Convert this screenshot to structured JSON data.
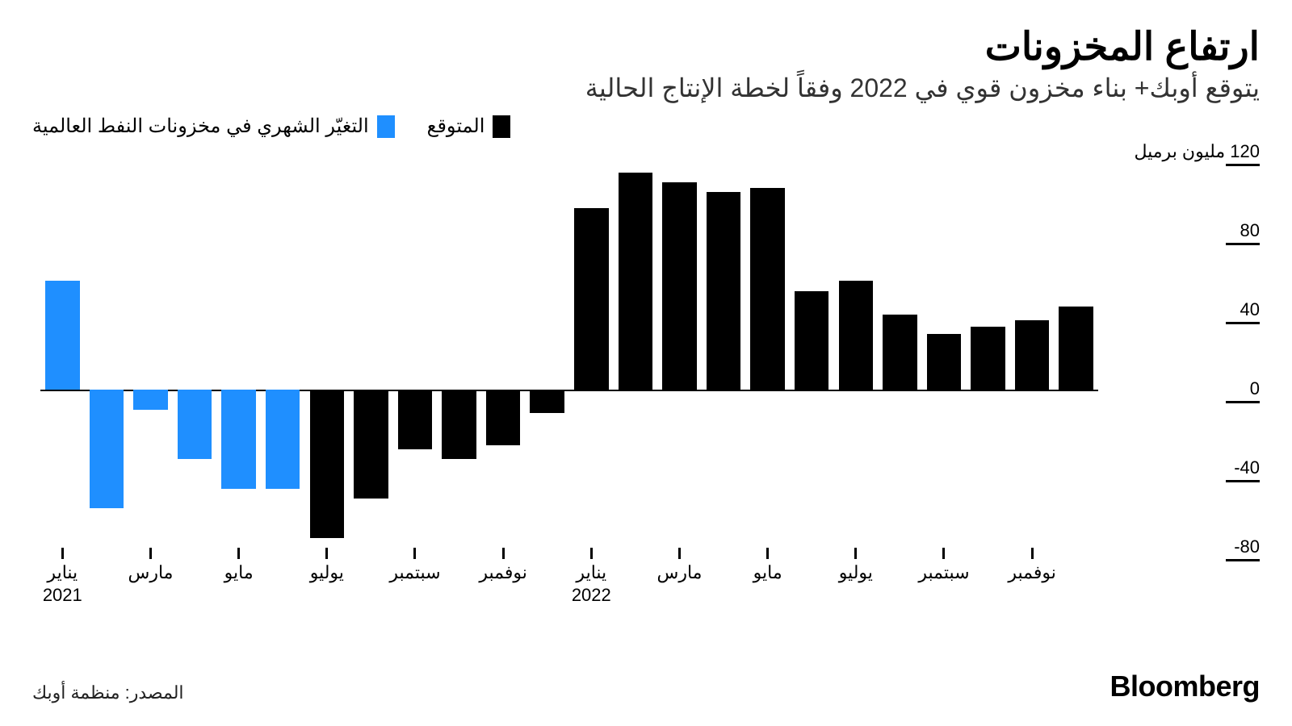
{
  "title": "ارتفاع المخزونات",
  "subtitle": "يتوقع أوبك+ بناء مخزون قوي في 2022 وفقاً لخطة الإنتاج الحالية",
  "legend": {
    "series1": {
      "label": "المتوقع",
      "color": "#000000"
    },
    "series2": {
      "label": "التغيّر الشهري في مخزونات النفط العالمية",
      "color": "#1f8fff"
    }
  },
  "source": "المصدر: منظمة أوبك",
  "brand": "Bloomberg",
  "chart": {
    "type": "bar",
    "y_unit_label": "مليون برميل",
    "ylim": [
      -80,
      120
    ],
    "yticks": [
      120,
      80,
      40,
      0,
      -40,
      -80
    ],
    "ytick_labels": [
      "120",
      "80",
      "40",
      "0",
      "40-",
      "80-"
    ],
    "background": "#ffffff",
    "axis_color": "#000000",
    "bar_gap_ratio": 0.22,
    "series": [
      {
        "value": 55,
        "color": "#1f8fff",
        "xlabel": "يناير",
        "xsub": "2021"
      },
      {
        "value": -60,
        "color": "#1f8fff"
      },
      {
        "value": -10,
        "color": "#1f8fff",
        "xlabel": "مارس"
      },
      {
        "value": -35,
        "color": "#1f8fff"
      },
      {
        "value": -50,
        "color": "#1f8fff",
        "xlabel": "مايو"
      },
      {
        "value": -50,
        "color": "#1f8fff"
      },
      {
        "value": -75,
        "color": "#000000",
        "xlabel": "يوليو"
      },
      {
        "value": -55,
        "color": "#000000"
      },
      {
        "value": -30,
        "color": "#000000",
        "xlabel": "سبتمبر"
      },
      {
        "value": -35,
        "color": "#000000"
      },
      {
        "value": -28,
        "color": "#000000",
        "xlabel": "نوفمبر"
      },
      {
        "value": -12,
        "color": "#000000"
      },
      {
        "value": 92,
        "color": "#000000",
        "xlabel": "يناير",
        "xsub": "2022"
      },
      {
        "value": 110,
        "color": "#000000"
      },
      {
        "value": 105,
        "color": "#000000",
        "xlabel": "مارس"
      },
      {
        "value": 100,
        "color": "#000000"
      },
      {
        "value": 102,
        "color": "#000000",
        "xlabel": "مايو"
      },
      {
        "value": 50,
        "color": "#000000"
      },
      {
        "value": 55,
        "color": "#000000",
        "xlabel": "يوليو"
      },
      {
        "value": 38,
        "color": "#000000"
      },
      {
        "value": 28,
        "color": "#000000",
        "xlabel": "سبتمبر"
      },
      {
        "value": 32,
        "color": "#000000"
      },
      {
        "value": 35,
        "color": "#000000",
        "xlabel": "نوفمبر"
      },
      {
        "value": 42,
        "color": "#000000"
      }
    ]
  }
}
